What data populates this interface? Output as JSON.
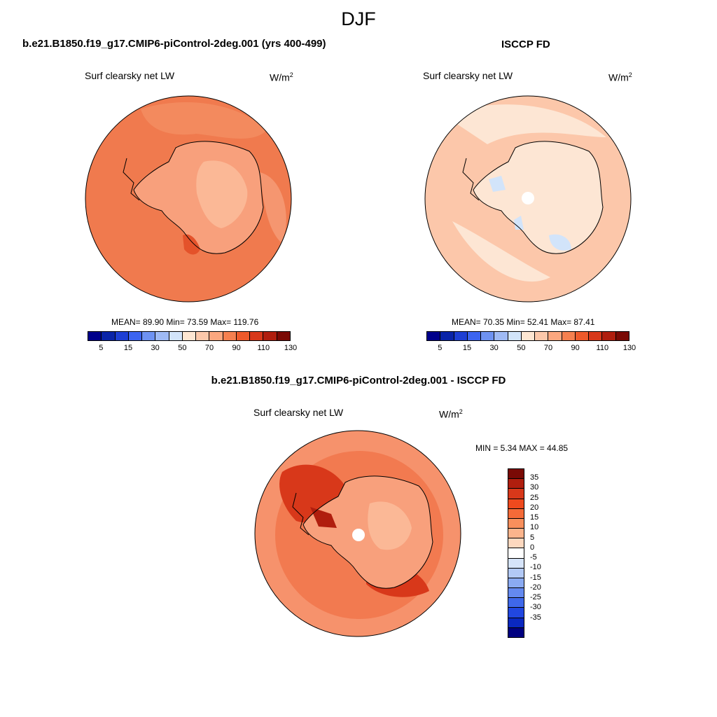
{
  "title": "DJF",
  "panels": {
    "model": {
      "title": "b.e21.B1850.f19_g17.CMIP6-piControl-2deg.001 (yrs 400-499)",
      "var_label": "Surf clearsky net LW",
      "unit": "W/m",
      "unit_exp": "2",
      "stats": "MEAN=  89.90  Min=  73.59  Max= 119.76",
      "mean": 89.9,
      "min": 73.59,
      "max": 119.76
    },
    "obs": {
      "title": "ISCCP FD",
      "var_label": "Surf clearsky net LW",
      "unit": "W/m",
      "unit_exp": "2",
      "stats": "MEAN=  70.35  Min=  52.41  Max=  87.41",
      "mean": 70.35,
      "min": 52.41,
      "max": 87.41
    },
    "diff": {
      "title": "b.e21.B1850.f19_g17.CMIP6-piControl-2deg.001 - ISCCP FD",
      "var_label": "Surf clearsky net LW",
      "unit": "W/m",
      "unit_exp": "2",
      "stats": "MIN =   5.34 MAX =  44.85",
      "min": 5.34,
      "max": 44.85
    }
  },
  "colorbar_abs": {
    "colors": [
      "#00008b",
      "#0a24a8",
      "#1e3fd4",
      "#3c64f0",
      "#6e92f2",
      "#9fbaf5",
      "#d2e4fa",
      "#fde6d2",
      "#fcc8aa",
      "#fba77f",
      "#f5804f",
      "#ee5a2b",
      "#d8381a",
      "#b01e0e",
      "#7a0a05"
    ],
    "labels": [
      "5",
      "15",
      "30",
      "50",
      "70",
      "90",
      "110",
      "130"
    ],
    "label_positions": [
      1,
      3,
      5,
      7,
      9,
      11,
      13,
      15
    ]
  },
  "colorbar_diff": {
    "colors": [
      "#7a0a05",
      "#b01e0e",
      "#d8381a",
      "#ef4a1e",
      "#f46a38",
      "#f88f5c",
      "#fbb48c",
      "#fdd8bf",
      "#ffffff",
      "#d6e4fa",
      "#b2c9f6",
      "#8aaaf2",
      "#6489ef",
      "#3f68ea",
      "#2147e0",
      "#0a28c0",
      "#000080"
    ],
    "labels": [
      "35",
      "30",
      "25",
      "20",
      "15",
      "10",
      "5",
      "0",
      "-5",
      "-10",
      "-15",
      "-20",
      "-25",
      "-30",
      "-35"
    ]
  },
  "legend_colors": {
    "ocean_model": "#f07a4e",
    "land_model": "#f8a07c",
    "ocean_obs": "#fcc7aa",
    "land_obs": "#fde6d4",
    "diff_base": "#f27a50",
    "diff_ring": "#f6926c"
  }
}
